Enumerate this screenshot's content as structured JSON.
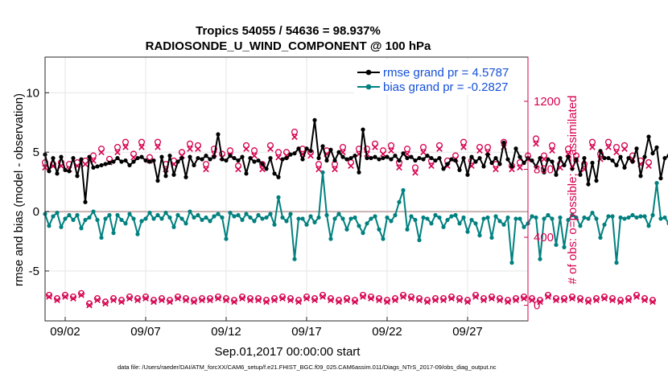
{
  "chart_data": {
    "type": "line",
    "title_line1": "Tropics 54055 / 54636 = 98.937%",
    "title_line2": "RADIOSONDE_U_WIND_COMPONENT @ 100 hPa",
    "xlabel": "Sep.01,2017 00:00:00 start",
    "ylabel_left": "rmse and bias (model - observation)",
    "ylabel_right": "# of obs: o=possible; ×=assimilated",
    "footnote": "data file: /Users/raeder/DAI/ATM_forcXX/CAM6_setup/f.e21.FHIST_BGC.f09_025.CAM6assim.011/Diags_NTrS_2017-09/obs_diag_output.nc",
    "x_range": [
      0.75,
      30.75
    ],
    "y_left_range": [
      -9.2,
      13
    ],
    "y_right_range": [
      -92,
      1460
    ],
    "x_ticks": [
      {
        "value": 2,
        "label": "09/02"
      },
      {
        "value": 7,
        "label": "09/07"
      },
      {
        "value": 12,
        "label": "09/12"
      },
      {
        "value": 17,
        "label": "09/17"
      },
      {
        "value": 22,
        "label": "09/22"
      },
      {
        "value": 27,
        "label": "09/27"
      }
    ],
    "y_left_ticks": [
      {
        "value": -5,
        "label": "-5"
      },
      {
        "value": 0,
        "label": "0"
      },
      {
        "value": 5,
        "label": "5"
      },
      {
        "value": 10,
        "label": "10"
      }
    ],
    "y_right_ticks": [
      {
        "value": 0,
        "label": "0"
      },
      {
        "value": 400,
        "label": "400"
      },
      {
        "value": 800,
        "label": "800"
      },
      {
        "value": 1200,
        "label": "1200"
      }
    ],
    "x_start": 0.75,
    "x_step": 0.25,
    "series": [
      {
        "name": "rmse",
        "legend": "rmse grand pr = 4.5787",
        "color": "#000000",
        "values": [
          4.8,
          3.4,
          4.5,
          3.2,
          4.6,
          3.5,
          3.4,
          4.5,
          3.0,
          4.4,
          0.8,
          4.6,
          3.7,
          3.8,
          3.9,
          4.0,
          4.1,
          4.2,
          4.5,
          4.2,
          4.3,
          3.9,
          4.2,
          4.5,
          4.6,
          4.3,
          4.2,
          4.3,
          2.6,
          4.6,
          3.0,
          4.7,
          3.1,
          4.2,
          4.5,
          2.9,
          4.6,
          3.9,
          4.5,
          4.4,
          4.7,
          4.4,
          4.6,
          6.5,
          4.4,
          4.3,
          4.7,
          4.5,
          4.3,
          4.6,
          3.2,
          4.5,
          4.2,
          4.3,
          4.0,
          3.6,
          4.5,
          3.2,
          2.9,
          4.4,
          4.5,
          4.8,
          4.9,
          5.3,
          4.4,
          5.3,
          5.1,
          7.7,
          4.5,
          5.5,
          4.3,
          5.2,
          4.3,
          5.0,
          4.6,
          4.4,
          4.5,
          4.7,
          3.3,
          6.9,
          4.5,
          4.5,
          4.6,
          4.4,
          4.5,
          4.6,
          4.4,
          4.7,
          4.3,
          4.9,
          4.5,
          4.6,
          4.3,
          4.5,
          4.4,
          4.7,
          4.5,
          4.3,
          4.5,
          3.6,
          4.0,
          4.4,
          4.3,
          3.5,
          4.5,
          3.1,
          4.6,
          4.2,
          4.5,
          3.8,
          4.8,
          4.1,
          4.5,
          4.0,
          5.8,
          4.4,
          3.8,
          5.3,
          4.6,
          4.1,
          4.5,
          4.3,
          3.8,
          4.5,
          3.3,
          4.4,
          4.2,
          3.1,
          4.5,
          3.9,
          4.6,
          3.6,
          4.4,
          3.1,
          4.5,
          2.3,
          4.1,
          2.6,
          5.1,
          4.5,
          4.5,
          4.3,
          3.9,
          4.6,
          3.7,
          4.5,
          4.2,
          5.3,
          3.0,
          4.6,
          6.3,
          4.9,
          5.4,
          2.8,
          4.5,
          4.7,
          4.8
        ]
      },
      {
        "name": "bias",
        "legend": "bias grand pr = -0.2827",
        "color": "#00807f",
        "values": [
          -0.2,
          -1.2,
          -0.4,
          -0.1,
          -1.3,
          -0.6,
          -0.3,
          -0.7,
          -0.3,
          -1.4,
          -0.7,
          -0.5,
          0.0,
          -0.7,
          -2.2,
          -0.6,
          -0.3,
          -1.8,
          -0.3,
          -0.7,
          -1.0,
          -0.2,
          -0.6,
          -1.9,
          -0.8,
          -0.6,
          -0.1,
          -0.6,
          -0.3,
          -0.6,
          -0.1,
          -0.5,
          -1.3,
          -0.3,
          -0.6,
          -1.0,
          0.0,
          -0.5,
          -0.3,
          -0.7,
          -0.5,
          -0.8,
          -0.4,
          -0.2,
          -0.5,
          -2.3,
          -0.1,
          -0.4,
          -0.3,
          -0.7,
          -0.2,
          -0.5,
          -0.8,
          -0.3,
          -0.6,
          -0.5,
          -0.2,
          -1.1,
          1.2,
          -0.5,
          -0.8,
          -0.2,
          -4.0,
          -0.6,
          -0.6,
          -1.1,
          -0.4,
          -0.9,
          -0.5,
          3.3,
          -0.3,
          -2.3,
          -0.6,
          -0.2,
          -0.6,
          -1.5,
          -0.6,
          -0.5,
          -1.2,
          -1.8,
          -1.0,
          -0.6,
          -0.4,
          -1.5,
          -2.3,
          -0.5,
          -0.8,
          -0.3,
          0.8,
          1.8,
          -1.5,
          -0.4,
          -0.7,
          -2.4,
          -0.5,
          -0.6,
          -1.0,
          -0.3,
          -0.5,
          -1.3,
          -0.7,
          -0.4,
          -0.3,
          -1.0,
          -0.5,
          -1.7,
          -0.7,
          -1.0,
          -2.0,
          -0.6,
          -0.5,
          -2.2,
          -0.4,
          -0.8,
          -1.1,
          -0.5,
          -4.3,
          -0.6,
          -0.6,
          -1.3,
          -1.0,
          -0.4,
          -0.5,
          -4.0,
          -0.6,
          -0.3,
          -0.6,
          -2.8,
          -0.5,
          -3.0,
          -0.7,
          -0.3,
          -0.5,
          -1.2,
          -0.5,
          -0.6,
          -0.1,
          -0.6,
          -2.2,
          -1.1,
          -0.4,
          -0.4,
          -4.3,
          -0.5,
          -0.6,
          -0.5,
          -0.3,
          -0.5,
          -0.4,
          -0.4,
          -1.2,
          -0.3,
          2.4,
          -0.6,
          -0.5,
          -1.0,
          0.5,
          -2.2
        ]
      },
      {
        "name": "possible",
        "color": "#d6004f",
        "values": [
          840,
          60,
          830,
          40,
          840,
          60,
          830,
          50,
          840,
          70,
          850,
          10,
          880,
          40,
          920,
          20,
          860,
          40,
          930,
          30,
          960,
          50,
          890,
          40,
          960,
          50,
          870,
          30,
          960,
          40,
          830,
          30,
          850,
          50,
          900,
          40,
          950,
          30,
          940,
          40,
          830,
          40,
          920,
          50,
          890,
          40,
          910,
          30,
          820,
          50,
          940,
          40,
          910,
          40,
          830,
          30,
          940,
          40,
          900,
          50,
          900,
          40,
          1020,
          30,
          920,
          50,
          900,
          40,
          830,
          60,
          910,
          40,
          830,
          30,
          930,
          40,
          840,
          30,
          920,
          60,
          920,
          50,
          950,
          40,
          910,
          30,
          940,
          40,
          840,
          60,
          920,
          50,
          810,
          40,
          930,
          30,
          850,
          40,
          940,
          40,
          850,
          50,
          880,
          40,
          960,
          30,
          850,
          60,
          930,
          40,
          930,
          50,
          830,
          40,
          960,
          30,
          820,
          40,
          840,
          50,
          880,
          40,
          980,
          30,
          880,
          60,
          940,
          40,
          830,
          40,
          920,
          50,
          880,
          40,
          830,
          30,
          960,
          40,
          890,
          50,
          960,
          40,
          930,
          30,
          940,
          40,
          880,
          60,
          850,
          40,
          840,
          30
        ]
      },
      {
        "name": "assimilated",
        "color": "#d6004f",
        "values": [
          810,
          50,
          820,
          30,
          820,
          50,
          800,
          40,
          820,
          60,
          830,
          0,
          850,
          30,
          900,
          10,
          840,
          30,
          900,
          20,
          930,
          40,
          870,
          30,
          930,
          40,
          850,
          20,
          930,
          30,
          800,
          20,
          830,
          40,
          880,
          30,
          920,
          20,
          920,
          30,
          800,
          30,
          890,
          40,
          870,
          30,
          880,
          20,
          800,
          40,
          920,
          30,
          880,
          30,
          800,
          20,
          920,
          30,
          870,
          40,
          880,
          30,
          990,
          20,
          890,
          40,
          880,
          30,
          800,
          50,
          890,
          30,
          800,
          20,
          900,
          30,
          820,
          20,
          890,
          50,
          890,
          40,
          930,
          30,
          890,
          20,
          910,
          30,
          810,
          50,
          890,
          40,
          780,
          30,
          900,
          20,
          820,
          30,
          920,
          30,
          820,
          40,
          860,
          30,
          930,
          20,
          820,
          50,
          910,
          30,
          900,
          40,
          800,
          30,
          930,
          20,
          800,
          30,
          810,
          40,
          860,
          30,
          950,
          20,
          860,
          50,
          910,
          30,
          810,
          30,
          890,
          40,
          860,
          30,
          800,
          20,
          930,
          30,
          860,
          40,
          930,
          30,
          900,
          20,
          920,
          30,
          860,
          50,
          830,
          30,
          820,
          20
        ]
      }
    ]
  }
}
